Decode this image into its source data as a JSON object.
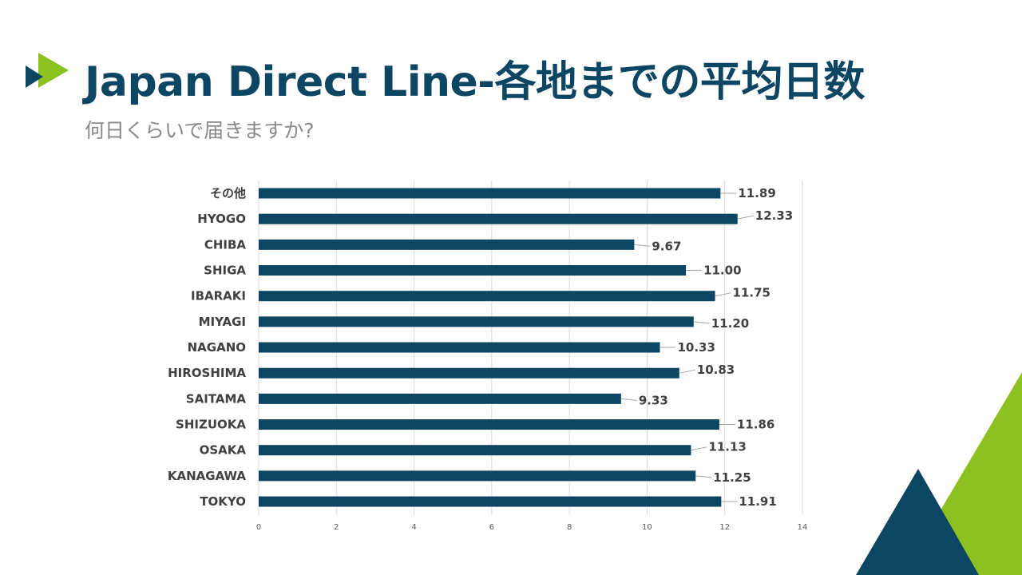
{
  "slide": {
    "title": "Japan Direct Line-各地までの平均日数",
    "subtitle": "何日くらいで届きますか?"
  },
  "colors": {
    "bar": "#0c4662",
    "accent_green": "#8dc021",
    "navy": "#0c4662",
    "gridline": "#d9d9d9",
    "leader_line": "#a6a6a6"
  },
  "chart_data": {
    "type": "bar",
    "orientation": "horizontal",
    "categories": [
      "その他",
      "HYOGO",
      "CHIBA",
      "SHIGA",
      "IBARAKI",
      "MIYAGI",
      "NAGANO",
      "HIROSHIMA",
      "SAITAMA",
      "SHIZUOKA",
      "OSAKA",
      "KANAGAWA",
      "TOKYO"
    ],
    "values": [
      11.89,
      12.33,
      9.67,
      11.0,
      11.75,
      11.2,
      10.33,
      10.83,
      9.33,
      11.86,
      11.13,
      11.25,
      11.91
    ],
    "value_labels": [
      "11.89",
      "12.33",
      "9.67",
      "11.00",
      "11.75",
      "11.20",
      "10.33",
      "10.83",
      "9.33",
      "11.86",
      "11.13",
      "11.25",
      "11.91"
    ],
    "xlim": [
      0,
      14
    ],
    "xticks": [
      0,
      2,
      4,
      6,
      8,
      10,
      12,
      14
    ],
    "xtick_labels": [
      "0",
      "2",
      "4",
      "6",
      "8",
      "10",
      "12",
      "14"
    ],
    "grid": true,
    "legend": "none"
  }
}
